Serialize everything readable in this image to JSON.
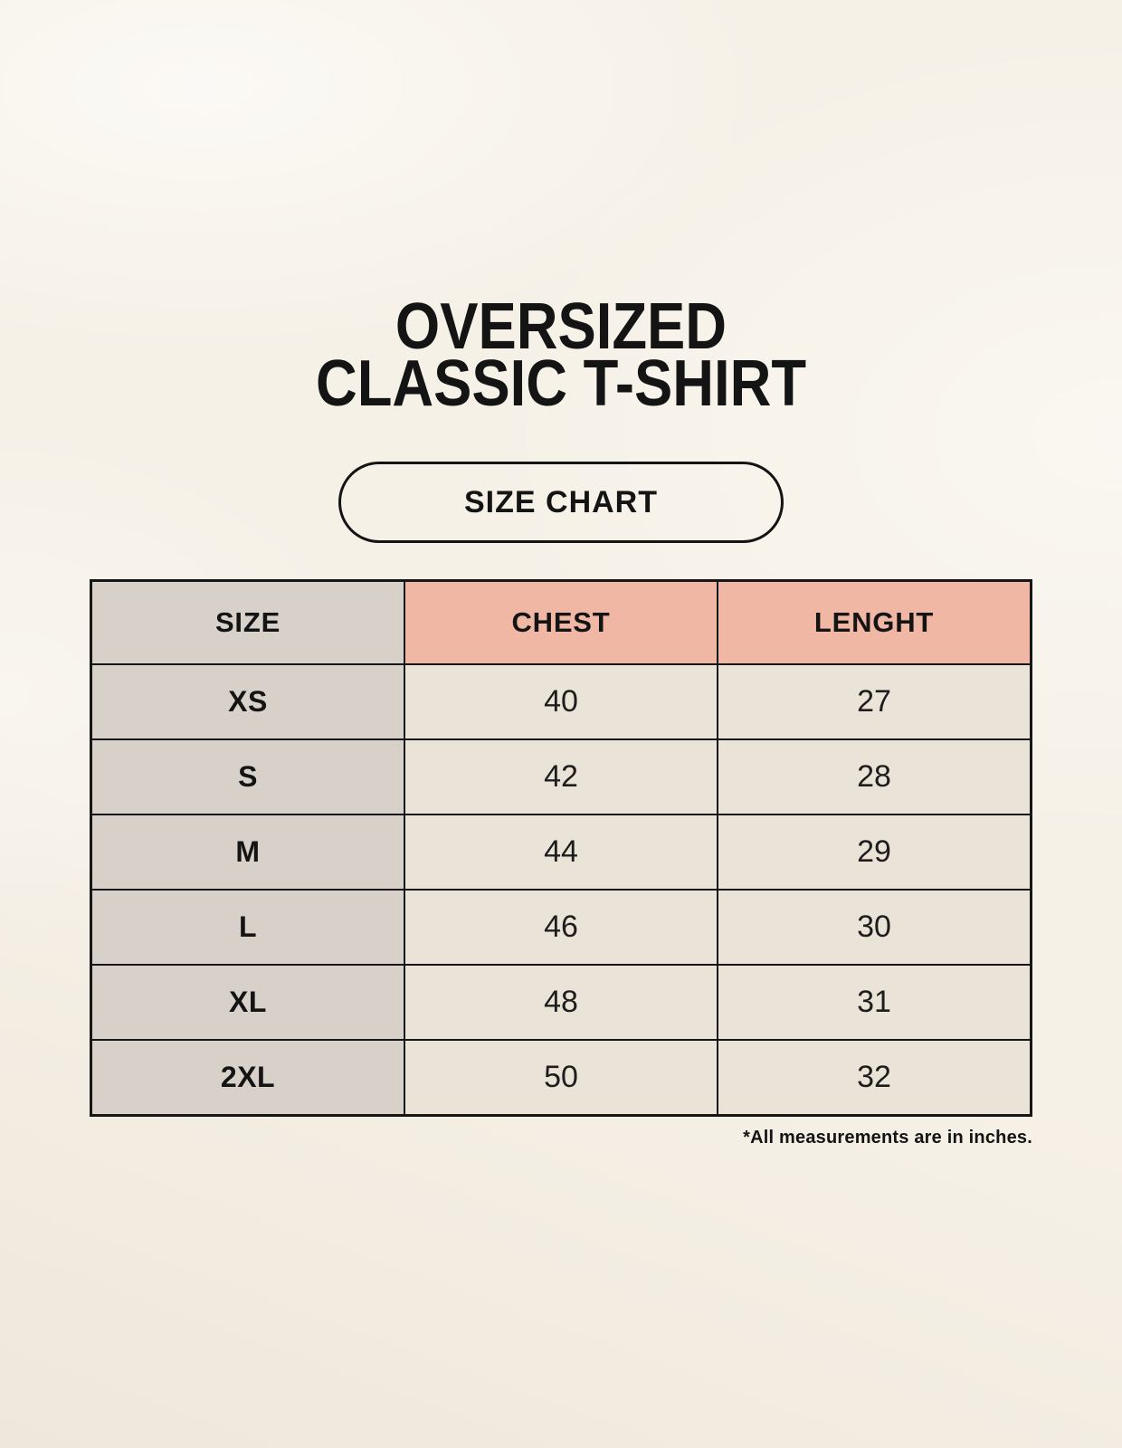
{
  "header": {
    "title_line1": "OVERSIZED",
    "title_line2": "CLASSIC T-SHIRT",
    "badge_label": "SIZE CHART"
  },
  "chart_data": {
    "type": "table",
    "title": "OVERSIZED CLASSIC T-SHIRT",
    "subtitle": "SIZE CHART",
    "columns": [
      "SIZE",
      "CHEST",
      "LENGHT"
    ],
    "rows": [
      [
        "XS",
        "40",
        "27"
      ],
      [
        "S",
        "42",
        "28"
      ],
      [
        "M",
        "44",
        "29"
      ],
      [
        "L",
        "46",
        "30"
      ],
      [
        "XL",
        "48",
        "31"
      ],
      [
        "2XL",
        "50",
        "32"
      ]
    ],
    "units_note": "*All measurements are in inches."
  },
  "colors": {
    "page_background": "#f6f1e7",
    "label_cell_bg": "#d8d1ca",
    "measure_header_bg": "#f0b7a5",
    "value_cell_bg": "#eae3d7",
    "table_border": "#161616",
    "text": "#141414"
  }
}
